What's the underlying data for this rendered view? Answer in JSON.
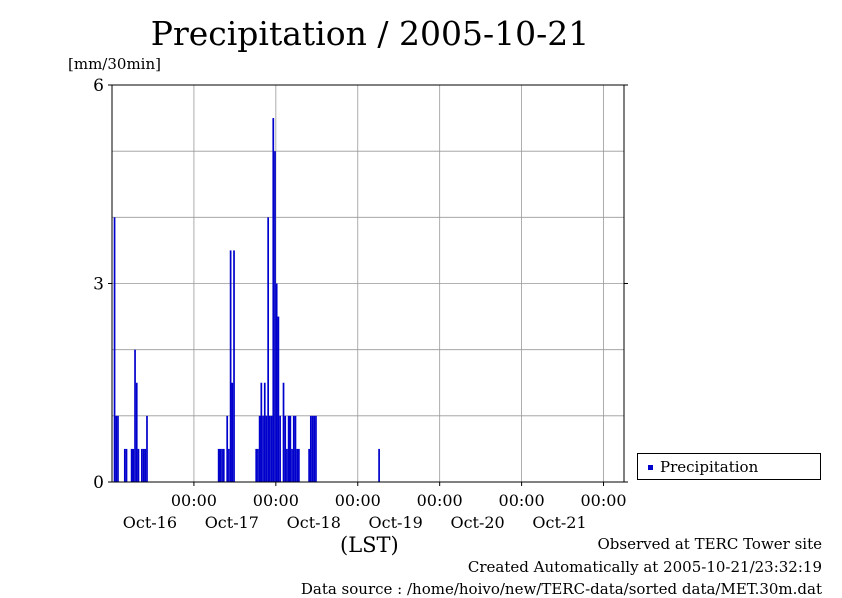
{
  "title": "Precipitation / 2005-10-21",
  "unit_label": "[mm/30min]",
  "xlabel": "(LST)",
  "legend_label": "Precipitation",
  "footer": {
    "line1": "Observed at TERC Tower site",
    "line2": "Created Automatically at 2005-10-21/23:32:19",
    "line3": "Data source : /home/hoivo/new/TERC-data/sorted  data/MET.30m.dat"
  },
  "colors": {
    "series": "#0000cc",
    "grid": "#999999"
  },
  "chart_data": {
    "type": "bar",
    "title": "Precipitation / 2005-10-21",
    "ylabel": "[mm/30min]",
    "xlabel": "(LST)",
    "ylim": [
      0,
      6
    ],
    "yticks": [
      0,
      3,
      6
    ],
    "grid": true,
    "legend_position": "right",
    "x_range_hours": [
      -18,
      132
    ],
    "x_ticks": [
      {
        "hour": 6,
        "time": "00:00",
        "date": "Oct-16"
      },
      {
        "hour": 30,
        "time": "00:00",
        "date": "Oct-17"
      },
      {
        "hour": 54,
        "time": "00:00",
        "date": "Oct-18"
      },
      {
        "hour": 78,
        "time": "00:00",
        "date": "Oct-19"
      },
      {
        "hour": 102,
        "time": "00:00",
        "date": "Oct-20"
      },
      {
        "hour": 126,
        "time": "00:00",
        "date": "Oct-21"
      }
    ],
    "series": [
      {
        "name": "Precipitation",
        "x_hour": [
          -17.5,
          -17,
          -16.5,
          -14.5,
          -14,
          -12.5,
          -12,
          -11.5,
          -11,
          -10.5,
          -9.5,
          -9,
          -8.5,
          -8,
          13,
          13.5,
          14,
          14.5,
          15.5,
          16,
          16.5,
          17,
          17.5,
          24,
          24.5,
          25,
          25.5,
          26,
          26.5,
          27,
          27.5,
          28,
          28.5,
          29,
          29.5,
          30,
          30.5,
          31,
          32,
          32.5,
          33,
          33.5,
          34,
          34.5,
          35,
          35.5,
          36,
          36.5,
          39.5,
          40,
          40.5,
          41,
          41.5,
          60
        ],
        "values": [
          4,
          1,
          1,
          0.5,
          0.5,
          0.5,
          0.5,
          2,
          1.5,
          0.5,
          0.5,
          0.5,
          0.5,
          1,
          0.5,
          0.5,
          0.5,
          0.5,
          1,
          0.5,
          3.5,
          1.5,
          3.5,
          0.5,
          0.5,
          1,
          1.5,
          1,
          1.5,
          1,
          4,
          1,
          1,
          5.5,
          5,
          3,
          2.5,
          1,
          1.5,
          1,
          0.5,
          1,
          1,
          0.5,
          1,
          1,
          0.5,
          0.5,
          0.5,
          1,
          1,
          1,
          1,
          0.5
        ]
      }
    ]
  }
}
